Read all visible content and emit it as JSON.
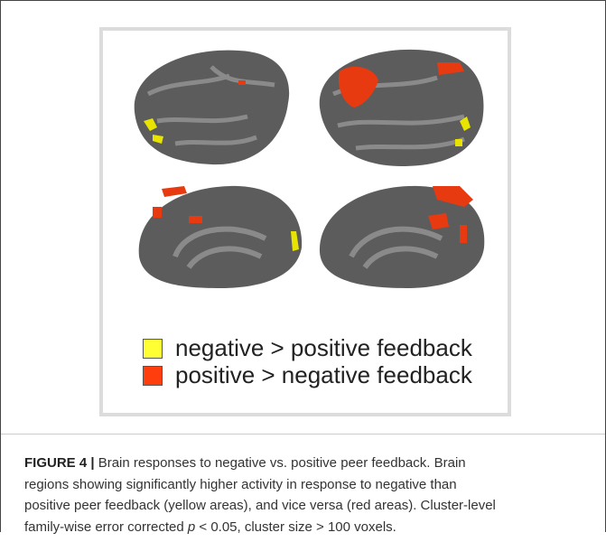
{
  "figure": {
    "legend": [
      {
        "label": "negative > positive feedback"
      },
      {
        "label": "positive > negative feedback"
      }
    ]
  },
  "caption": {
    "label": "FIGURE 4 |",
    "lines": [
      "Brain responses to negative vs. positive peer feedback. Brain",
      "regions showing significantly higher activity in response to negative than",
      "positive peer feedback (yellow areas), and vice versa (red areas). Cluster-level"
    ],
    "last_line": {
      "before": "family-wise error corrected ",
      "italic": "p",
      "after": " < 0.05, cluster size > 100 voxels."
    }
  }
}
